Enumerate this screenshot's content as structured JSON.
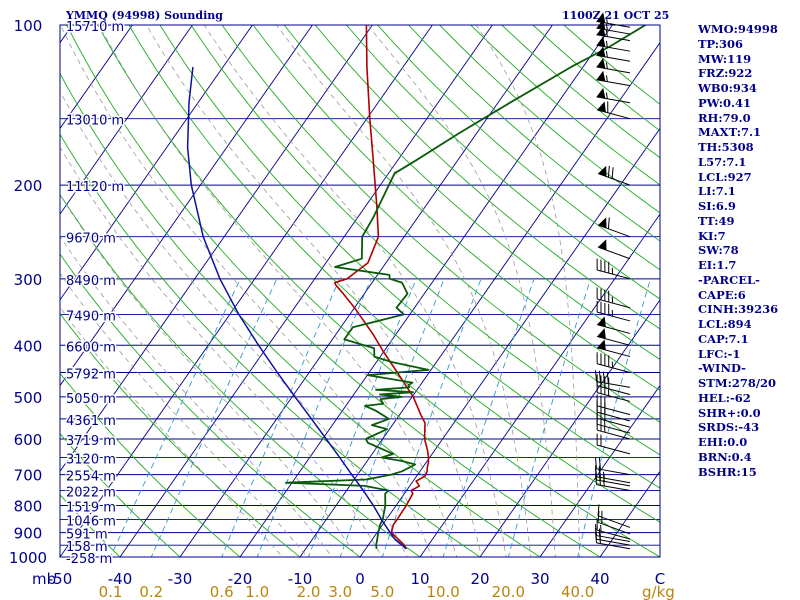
{
  "header": {
    "title": "YMMQ (94998) Sounding",
    "timestamp": "1100Z 21 OCT 25"
  },
  "stats_panel": [
    "WMO:94998",
    "TP:306",
    "MW:119",
    "FRZ:922",
    "WB0:934",
    "PW:0.41",
    "RH:79.0",
    "MAXT:7.1",
    "TH:5308",
    "L57:7.1",
    "LCL:927",
    "LI:7.1",
    "SI:6.9",
    "TT:49",
    "KI:7",
    "SW:78",
    "EI:1.7",
    "-PARCEL-",
    "CAPE:6",
    "CINH:39236",
    "LCL:894",
    "CAP:7.1",
    "LFC:-1",
    "-WIND-",
    "STM:278/20",
    "HEL:-62",
    "SHR+:0.0",
    "SRDS:-43",
    "EHI:0.0",
    "BRN:0.4",
    "BSHR:15"
  ],
  "colors": {
    "isobar": "#00008b",
    "isotherm": "#00008b",
    "dry_adiabat": "#22aa22",
    "moist_adiabat": "#9a9a9a",
    "mixing_ratio": "#3399cc",
    "temperature": "#b00000",
    "dewpoint": "#0b5a0b",
    "parcel": "#1010a0",
    "axis_text": "#00008b",
    "mixing_text": "#b8860b"
  },
  "chart_data": {
    "type": "line",
    "title": "YMMQ (94998) Sounding",
    "subtitle": "1100Z 21 OCT 25",
    "ylabel": "mb",
    "xlabel": "C",
    "y_scale": "log",
    "pressure_range": [
      1000,
      100
    ],
    "temperature_range": [
      -50,
      50
    ],
    "pressure_ticks": [
      100,
      200,
      300,
      400,
      500,
      600,
      700,
      800,
      900,
      1000
    ],
    "temperature_ticks": [
      -50,
      -40,
      -30,
      -20,
      -10,
      0,
      10,
      20,
      30,
      40,
      50
    ],
    "temperature_tick_labels": [
      "-50",
      "-40",
      "-30",
      "-20",
      "-10",
      "0",
      "10",
      "20",
      "30",
      "40",
      "C"
    ],
    "mixing_ratio_label_unit": "g/kg",
    "mixing_ratio_labels": [
      {
        "label": "0.1",
        "value": 0.1
      },
      {
        "label": "0.2",
        "value": 0.2
      },
      {
        "label": "0.6",
        "value": 0.6
      },
      {
        "label": "1.0",
        "value": 1.0
      },
      {
        "label": "2.0",
        "value": 2.0
      },
      {
        "label": "3.0",
        "value": 3.0
      },
      {
        "label": "5.0",
        "value": 5.0
      },
      {
        "label": "10.0",
        "value": 10.0
      },
      {
        "label": "20.0",
        "value": 20.0
      },
      {
        "label": "40.0",
        "value": 40.0
      }
    ],
    "height_labels": [
      {
        "p": 100,
        "label": "15710 m"
      },
      {
        "p": 150,
        "label": "13010 m"
      },
      {
        "p": 200,
        "label": "11120 m"
      },
      {
        "p": 250,
        "label": "9670 m"
      },
      {
        "p": 300,
        "label": "8490 m"
      },
      {
        "p": 350,
        "label": "7490 m"
      },
      {
        "p": 400,
        "label": "6600 m"
      },
      {
        "p": 450,
        "label": "5792 m"
      },
      {
        "p": 500,
        "label": "5050 m"
      },
      {
        "p": 550,
        "label": "4361 m"
      },
      {
        "p": 600,
        "label": "3719 m"
      },
      {
        "p": 650,
        "label": "3120 m"
      },
      {
        "p": 700,
        "label": "2554 m"
      },
      {
        "p": 750,
        "label": "2022 m"
      },
      {
        "p": 800,
        "label": "1519 m"
      },
      {
        "p": 850,
        "label": "1046 m"
      },
      {
        "p": 900,
        "label": "591 m"
      },
      {
        "p": 950,
        "label": "158 m"
      },
      {
        "p": 1000,
        "label": "-258 m"
      }
    ],
    "series": [
      {
        "key": "temperature",
        "points": [
          [
            965,
            6.6
          ],
          [
            950,
            6.0
          ],
          [
            930,
            4.6
          ],
          [
            900,
            2.4
          ],
          [
            870,
            1.8
          ],
          [
            850,
            1.8
          ],
          [
            800,
            1.7
          ],
          [
            760,
            1.4
          ],
          [
            750,
            0.8
          ],
          [
            735,
            1.6
          ],
          [
            720,
            0.5
          ],
          [
            705,
            1.4
          ],
          [
            690,
            1.2
          ],
          [
            680,
            0.8
          ],
          [
            665,
            0.4
          ],
          [
            650,
            -0.2
          ],
          [
            630,
            -1.2
          ],
          [
            600,
            -3.0
          ],
          [
            560,
            -4.8
          ],
          [
            540,
            -6.5
          ],
          [
            500,
            -9.8
          ],
          [
            450,
            -15.3
          ],
          [
            410,
            -20.2
          ],
          [
            380,
            -24.0
          ],
          [
            340,
            -30.0
          ],
          [
            320,
            -33.5
          ],
          [
            308,
            -35.8
          ],
          [
            305,
            -36.2
          ],
          [
            300,
            -34.6
          ],
          [
            280,
            -33.0
          ],
          [
            250,
            -34.3
          ],
          [
            220,
            -38.0
          ],
          [
            180,
            -44.0
          ],
          [
            150,
            -49.5
          ],
          [
            120,
            -56.0
          ],
          [
            100,
            -61.0
          ]
        ]
      },
      {
        "key": "dewpoint",
        "points": [
          [
            965,
            1.8
          ],
          [
            950,
            1.3
          ],
          [
            930,
            0.9
          ],
          [
            900,
            0.2
          ],
          [
            870,
            -0.4
          ],
          [
            850,
            -0.6
          ],
          [
            800,
            -1.8
          ],
          [
            760,
            -3.2
          ],
          [
            750,
            -3.0
          ],
          [
            735,
            -7.5
          ],
          [
            725,
            -21.0
          ],
          [
            715,
            -8.0
          ],
          [
            700,
            -4.4
          ],
          [
            690,
            -3.0
          ],
          [
            670,
            -1.6
          ],
          [
            660,
            -4.2
          ],
          [
            650,
            -8.0
          ],
          [
            640,
            -6.5
          ],
          [
            610,
            -12.0
          ],
          [
            600,
            -12.8
          ],
          [
            575,
            -10.4
          ],
          [
            565,
            -13.4
          ],
          [
            550,
            -11.3
          ],
          [
            530,
            -14.6
          ],
          [
            520,
            -16.8
          ],
          [
            515,
            -14.0
          ],
          [
            505,
            -15.0
          ],
          [
            500,
            -11.7
          ],
          [
            495,
            -15.6
          ],
          [
            490,
            -10.4
          ],
          [
            485,
            -16.8
          ],
          [
            480,
            -11.6
          ],
          [
            475,
            -12.0
          ],
          [
            470,
            -11.6
          ],
          [
            455,
            -20.0
          ],
          [
            445,
            -10.4
          ],
          [
            430,
            -17.5
          ],
          [
            420,
            -21.0
          ],
          [
            405,
            -22.0
          ],
          [
            390,
            -28.0
          ],
          [
            370,
            -28.0
          ],
          [
            350,
            -21.0
          ],
          [
            340,
            -23.0
          ],
          [
            320,
            -22.8
          ],
          [
            305,
            -25.0
          ],
          [
            300,
            -27.5
          ],
          [
            295,
            -28.0
          ],
          [
            285,
            -38.0
          ],
          [
            275,
            -34.5
          ],
          [
            250,
            -37.0
          ],
          [
            230,
            -37.4
          ],
          [
            190,
            -39.0
          ],
          [
            180,
            -37.0
          ],
          [
            160,
            -33.0
          ],
          [
            140,
            -28.0
          ],
          [
            120,
            -22.0
          ],
          [
            110,
            -18.0
          ],
          [
            100,
            -14.5
          ]
        ]
      },
      {
        "key": "parcel",
        "points": [
          [
            965,
            6.8
          ],
          [
            950,
            5.6
          ],
          [
            927,
            3.8
          ],
          [
            900,
            2.2
          ],
          [
            850,
            -0.8
          ],
          [
            800,
            -3.8
          ],
          [
            750,
            -7.2
          ],
          [
            700,
            -11.0
          ],
          [
            650,
            -15.0
          ],
          [
            600,
            -19.4
          ],
          [
            550,
            -24.2
          ],
          [
            500,
            -29.5
          ],
          [
            450,
            -35.3
          ],
          [
            400,
            -41.6
          ],
          [
            350,
            -48.5
          ],
          [
            300,
            -55.8
          ],
          [
            250,
            -63.5
          ],
          [
            200,
            -71.5
          ],
          [
            170,
            -76.5
          ],
          [
            140,
            -81.5
          ],
          [
            120,
            -85.0
          ]
        ]
      }
    ],
    "wind_barbs": [
      {
        "p": 965,
        "dir": 280,
        "kt": 20
      },
      {
        "p": 950,
        "dir": 280,
        "kt": 20
      },
      {
        "p": 935,
        "dir": 280,
        "kt": 15
      },
      {
        "p": 925,
        "dir": 285,
        "kt": 15
      },
      {
        "p": 905,
        "dir": 290,
        "kt": 15
      },
      {
        "p": 880,
        "dir": 290,
        "kt": 15
      },
      {
        "p": 750,
        "dir": 280,
        "kt": 25
      },
      {
        "p": 735,
        "dir": 280,
        "kt": 25
      },
      {
        "p": 725,
        "dir": 280,
        "kt": 25
      },
      {
        "p": 700,
        "dir": 280,
        "kt": 20
      },
      {
        "p": 640,
        "dir": 285,
        "kt": 20
      },
      {
        "p": 600,
        "dir": 285,
        "kt": 25
      },
      {
        "p": 585,
        "dir": 285,
        "kt": 25
      },
      {
        "p": 570,
        "dir": 285,
        "kt": 30
      },
      {
        "p": 555,
        "dir": 285,
        "kt": 30
      },
      {
        "p": 540,
        "dir": 285,
        "kt": 30
      },
      {
        "p": 510,
        "dir": 285,
        "kt": 35
      },
      {
        "p": 495,
        "dir": 285,
        "kt": 40
      },
      {
        "p": 480,
        "dir": 280,
        "kt": 40
      },
      {
        "p": 450,
        "dir": 285,
        "kt": 45
      },
      {
        "p": 420,
        "dir": 285,
        "kt": 50
      },
      {
        "p": 400,
        "dir": 285,
        "kt": 50
      },
      {
        "p": 380,
        "dir": 285,
        "kt": 50
      },
      {
        "p": 360,
        "dir": 285,
        "kt": 45
      },
      {
        "p": 340,
        "dir": 285,
        "kt": 45
      },
      {
        "p": 300,
        "dir": 285,
        "kt": 45
      },
      {
        "p": 275,
        "dir": 290,
        "kt": 50
      },
      {
        "p": 250,
        "dir": 290,
        "kt": 60
      },
      {
        "p": 200,
        "dir": 290,
        "kt": 70
      },
      {
        "p": 150,
        "dir": 285,
        "kt": 60
      },
      {
        "p": 140,
        "dir": 280,
        "kt": 55
      },
      {
        "p": 130,
        "dir": 280,
        "kt": 55
      },
      {
        "p": 123,
        "dir": 280,
        "kt": 55
      },
      {
        "p": 117,
        "dir": 280,
        "kt": 55
      },
      {
        "p": 112,
        "dir": 280,
        "kt": 55
      },
      {
        "p": 107,
        "dir": 280,
        "kt": 55
      },
      {
        "p": 104,
        "dir": 280,
        "kt": 55
      },
      {
        "p": 101,
        "dir": 280,
        "kt": 55
      }
    ]
  }
}
